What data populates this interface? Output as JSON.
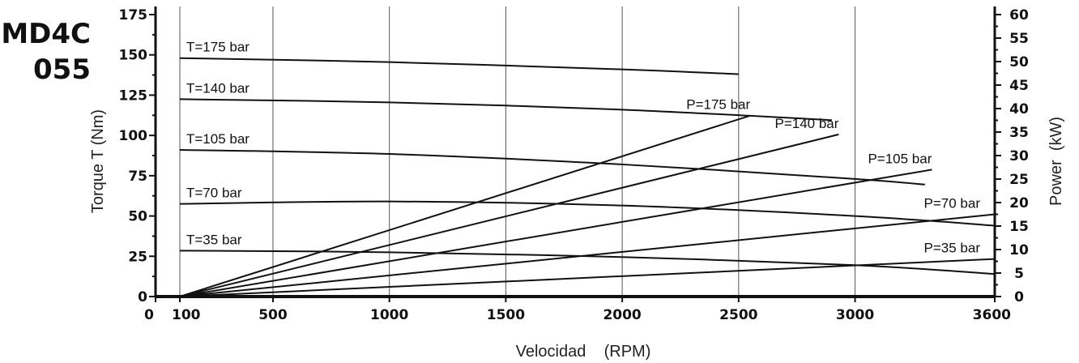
{
  "model": {
    "line1": "MD4C",
    "line2": "055"
  },
  "chart_data": {
    "type": "line",
    "xlabel": "Velocidad    (RPM)",
    "ylabel_left": "Torque T (Nm)",
    "ylabel_right": "Power  (kW)",
    "xlim": [
      0,
      3600
    ],
    "ylim_left": [
      0,
      175
    ],
    "ylim_right": [
      0,
      60
    ],
    "x_ticks": [
      0,
      100,
      500,
      1000,
      1500,
      2000,
      2500,
      3000,
      3600
    ],
    "x_tick_labels": [
      "0",
      "100",
      "500",
      "1000",
      "1500",
      "2000",
      "2500",
      "3000",
      "3600"
    ],
    "y_ticks_left": [
      0,
      25,
      50,
      75,
      100,
      125,
      150,
      175
    ],
    "y_ticks_right": [
      0,
      5,
      10,
      15,
      20,
      25,
      30,
      35,
      40,
      45,
      50,
      55,
      60
    ],
    "grid": {
      "vertical": [
        100,
        500,
        1000,
        1500,
        2000,
        2500,
        3000
      ],
      "horizontal": false
    },
    "torque_series": [
      {
        "name": "T=175 bar",
        "x": [
          100,
          1000,
          2000,
          2500
        ],
        "y": [
          148,
          145.5,
          141,
          138
        ]
      },
      {
        "name": "T=140 bar",
        "x": [
          100,
          1000,
          2000,
          2900
        ],
        "y": [
          122.5,
          120.5,
          116,
          109.5
        ]
      },
      {
        "name": "T=105 bar",
        "x": [
          100,
          1000,
          2000,
          3000,
          3300
        ],
        "y": [
          91,
          88.5,
          82,
          73,
          69.5
        ]
      },
      {
        "name": "T=70 bar",
        "x": [
          100,
          1000,
          2000,
          3000,
          3600
        ],
        "y": [
          57.5,
          59,
          56.5,
          50,
          44
        ]
      },
      {
        "name": "T=35 bar",
        "x": [
          100,
          1000,
          2000,
          3000,
          3600
        ],
        "y": [
          28.5,
          27.5,
          24.5,
          19.5,
          14
        ]
      }
    ],
    "power_series": [
      {
        "name": "P=175 bar",
        "x": [
          100,
          2550
        ],
        "y": [
          0,
          38.5
        ]
      },
      {
        "name": "P=140 bar",
        "x": [
          100,
          2930
        ],
        "y": [
          0,
          34.5
        ]
      },
      {
        "name": "P=105 bar",
        "x": [
          100,
          3330
        ],
        "y": [
          0,
          27
        ]
      },
      {
        "name": "P=70 bar",
        "x": [
          100,
          3600
        ],
        "y": [
          0,
          17.5
        ]
      },
      {
        "name": "P=35 bar",
        "x": [
          100,
          3600
        ],
        "y": [
          0,
          8
        ]
      }
    ]
  }
}
